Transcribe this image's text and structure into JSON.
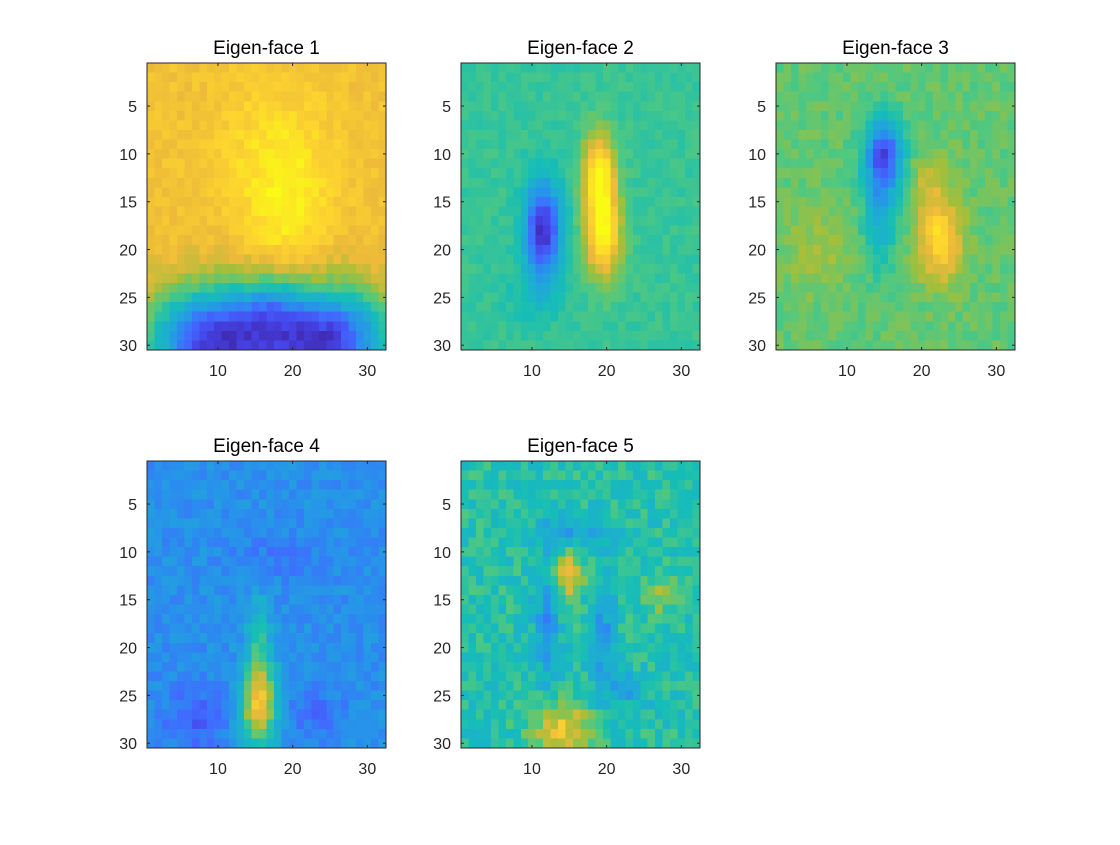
{
  "chart_data": [
    {
      "type": "heatmap",
      "title": "Eigen-face 1",
      "xlim": [
        0.5,
        32.5
      ],
      "ylim": [
        0.5,
        30.5
      ],
      "y_reversed": true,
      "xticks": [
        10,
        20,
        30
      ],
      "yticks": [
        5,
        10,
        15,
        20,
        25,
        30
      ],
      "colormap": "parula",
      "value_range": [
        0,
        1
      ],
      "grid_size": [
        32,
        30
      ],
      "blobs": [
        {
          "x": 19,
          "y": 16,
          "sx": 4,
          "sy": 6,
          "v": 0.12
        },
        {
          "x": 17,
          "y": 9,
          "sx": 6,
          "sy": 5,
          "v": 0.06
        },
        {
          "x": 9.5,
          "y": 29.5,
          "sx": 6,
          "sy": 3.8,
          "v": -0.75
        },
        {
          "x": 24.5,
          "y": 29.5,
          "sx": 6,
          "sy": 3.8,
          "v": -0.75
        },
        {
          "x": 17,
          "y": 26,
          "sx": 3,
          "sy": 2.5,
          "v": -0.2
        }
      ],
      "base": 0.83,
      "noise": 0.035
    },
    {
      "type": "heatmap",
      "title": "Eigen-face 2",
      "xlim": [
        0.5,
        32.5
      ],
      "ylim": [
        0.5,
        30.5
      ],
      "y_reversed": true,
      "xticks": [
        10,
        20,
        30
      ],
      "yticks": [
        5,
        10,
        15,
        20,
        25,
        30
      ],
      "colormap": "parula",
      "value_range": [
        0,
        1
      ],
      "grid_size": [
        32,
        30
      ],
      "blobs": [
        {
          "x": 11.5,
          "y": 18,
          "sx": 1.7,
          "sy": 3.5,
          "v": -0.52
        },
        {
          "x": 19,
          "y": 12,
          "sx": 1.5,
          "sy": 3,
          "v": 0.42
        },
        {
          "x": 19.5,
          "y": 18.5,
          "sx": 1.7,
          "sy": 3.2,
          "v": 0.42
        },
        {
          "x": 10,
          "y": 25,
          "sx": 3,
          "sy": 2,
          "v": -0.06
        }
      ],
      "base": 0.56,
      "noise": 0.03
    },
    {
      "type": "heatmap",
      "title": "Eigen-face 3",
      "xlim": [
        0.5,
        32.5
      ],
      "ylim": [
        0.5,
        30.5
      ],
      "y_reversed": true,
      "xticks": [
        10,
        20,
        30
      ],
      "yticks": [
        5,
        10,
        15,
        20,
        25,
        30
      ],
      "colormap": "parula",
      "value_range": [
        0,
        1
      ],
      "grid_size": [
        32,
        30
      ],
      "blobs": [
        {
          "x": 15,
          "y": 10,
          "sx": 1.8,
          "sy": 2.6,
          "v": -0.45
        },
        {
          "x": 14.5,
          "y": 16,
          "sx": 1.6,
          "sy": 4,
          "v": -0.22
        },
        {
          "x": 22.5,
          "y": 19,
          "sx": 2,
          "sy": 3,
          "v": 0.3
        },
        {
          "x": 21,
          "y": 13,
          "sx": 2,
          "sy": 2,
          "v": 0.1
        },
        {
          "x": 6,
          "y": 20,
          "sx": 3,
          "sy": 3,
          "v": 0.08
        }
      ],
      "base": 0.62,
      "noise": 0.04
    },
    {
      "type": "heatmap",
      "title": "Eigen-face 4",
      "xlim": [
        0.5,
        32.5
      ],
      "ylim": [
        0.5,
        30.5
      ],
      "y_reversed": true,
      "xticks": [
        10,
        20,
        30
      ],
      "yticks": [
        5,
        10,
        15,
        20,
        25,
        30
      ],
      "colormap": "parula",
      "value_range": [
        0,
        1
      ],
      "grid_size": [
        32,
        30
      ],
      "blobs": [
        {
          "x": 15.5,
          "y": 26,
          "sx": 1.6,
          "sy": 3,
          "v": 0.58
        },
        {
          "x": 15.5,
          "y": 19,
          "sx": 1.2,
          "sy": 3,
          "v": 0.2
        },
        {
          "x": 7,
          "y": 27.5,
          "sx": 3,
          "sy": 2.5,
          "v": -0.12
        },
        {
          "x": 23,
          "y": 27,
          "sx": 3,
          "sy": 2,
          "v": -0.08
        },
        {
          "x": 18,
          "y": 10.5,
          "sx": 4,
          "sy": 1.5,
          "v": -0.06
        }
      ],
      "base": 0.3,
      "noise": 0.05
    },
    {
      "type": "heatmap",
      "title": "Eigen-face 5",
      "xlim": [
        0.5,
        32.5
      ],
      "ylim": [
        0.5,
        30.5
      ],
      "y_reversed": true,
      "xticks": [
        10,
        20,
        30
      ],
      "yticks": [
        5,
        10,
        15,
        20,
        25,
        30
      ],
      "colormap": "parula",
      "value_range": [
        0,
        1
      ],
      "grid_size": [
        32,
        30
      ],
      "blobs": [
        {
          "x": 15,
          "y": 12.5,
          "sx": 1.5,
          "sy": 1.5,
          "v": 0.32
        },
        {
          "x": 14,
          "y": 28.5,
          "sx": 3,
          "sy": 2,
          "v": 0.3
        },
        {
          "x": 27,
          "y": 14.5,
          "sx": 1.5,
          "sy": 1.5,
          "v": 0.15
        },
        {
          "x": 12,
          "y": 17,
          "sx": 1.2,
          "sy": 5,
          "v": -0.2
        },
        {
          "x": 19.5,
          "y": 19,
          "sx": 1.2,
          "sy": 5,
          "v": -0.18
        },
        {
          "x": 15.5,
          "y": 8,
          "sx": 3.5,
          "sy": 1,
          "v": -0.16
        },
        {
          "x": 23,
          "y": 24.5,
          "sx": 2,
          "sy": 1.2,
          "v": -0.15
        }
      ],
      "base": 0.52,
      "noise": 0.08
    }
  ]
}
